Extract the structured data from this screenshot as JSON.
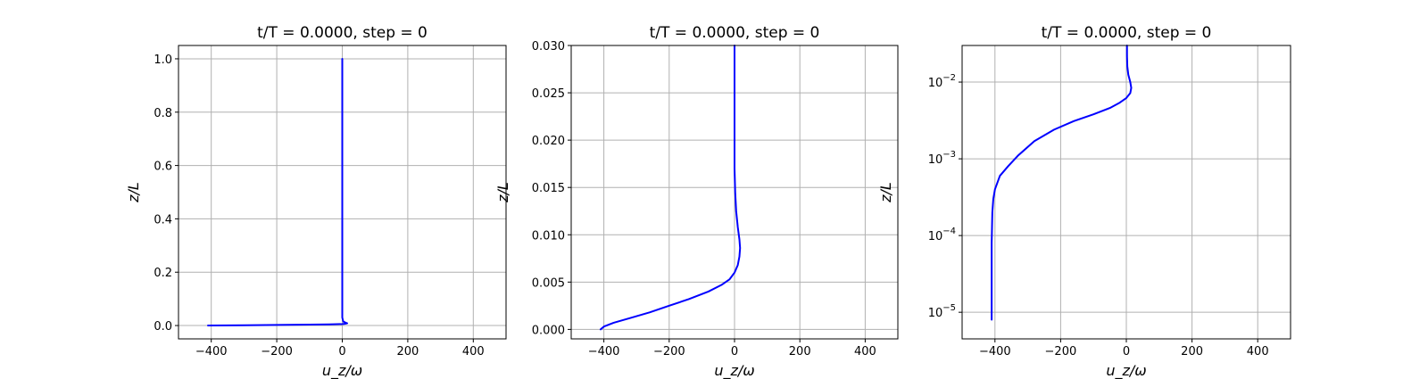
{
  "chart_data": [
    {
      "type": "line",
      "title": "t/T = 0.0000, step = 0",
      "xlabel": "u_z/ω",
      "ylabel": "z/L",
      "yscale": "linear",
      "xlim": [
        -500,
        500
      ],
      "ylim": [
        -0.05,
        1.05
      ],
      "xticks": [
        -400,
        -200,
        0,
        200,
        400
      ],
      "xtick_labels": [
        "−400",
        "−200",
        "0",
        "200",
        "400"
      ],
      "yticks": [
        0.0,
        0.2,
        0.4,
        0.6,
        0.8,
        1.0
      ],
      "ytick_labels": [
        "0.0",
        "0.2",
        "0.4",
        "0.6",
        "0.8",
        "1.0"
      ],
      "grid": true,
      "series": [
        {
          "name": "profile",
          "color": "#0000ff",
          "x": [
            -410,
            -300,
            -200,
            -100,
            -40,
            0,
            10,
            15,
            10,
            3,
            0,
            0,
            0
          ],
          "y": [
            0.0,
            0.001,
            0.0022,
            0.0035,
            0.0045,
            0.0055,
            0.007,
            0.0085,
            0.011,
            0.015,
            0.03,
            0.5,
            1.0
          ]
        }
      ]
    },
    {
      "type": "line",
      "title": "t/T = 0.0000, step = 0",
      "xlabel": "u_z/ω",
      "ylabel": "z/L",
      "yscale": "linear",
      "xlim": [
        -500,
        500
      ],
      "ylim": [
        -0.001,
        0.03
      ],
      "xticks": [
        -400,
        -200,
        0,
        200,
        400
      ],
      "xtick_labels": [
        "−400",
        "−200",
        "0",
        "200",
        "400"
      ],
      "yticks": [
        0.0,
        0.005,
        0.01,
        0.015,
        0.02,
        0.025,
        0.03
      ],
      "ytick_labels": [
        "0.000",
        "0.005",
        "0.010",
        "0.015",
        "0.020",
        "0.025",
        "0.030"
      ],
      "grid": true,
      "series": [
        {
          "name": "profile",
          "color": "#0000ff",
          "x": [
            -410,
            -400,
            -370,
            -320,
            -260,
            -200,
            -140,
            -80,
            -40,
            -15,
            0,
            10,
            15,
            17,
            15,
            10,
            5,
            2,
            0,
            0,
            0
          ],
          "y": [
            0.0,
            0.0003,
            0.0007,
            0.0012,
            0.0018,
            0.0025,
            0.0032,
            0.004,
            0.0047,
            0.0053,
            0.006,
            0.0068,
            0.0077,
            0.0086,
            0.0095,
            0.0108,
            0.0125,
            0.0145,
            0.017,
            0.022,
            0.03
          ]
        }
      ]
    },
    {
      "type": "line",
      "title": "t/T = 0.0000, step = 0",
      "xlabel": "u_z/ω",
      "ylabel": "z/L",
      "yscale": "log",
      "xlim": [
        -500,
        500
      ],
      "ylim": [
        4.5e-06,
        0.03
      ],
      "xticks": [
        -400,
        -200,
        0,
        200,
        400
      ],
      "xtick_labels": [
        "−400",
        "−200",
        "0",
        "200",
        "400"
      ],
      "yticks": [
        1e-05,
        0.0001,
        0.001,
        0.01
      ],
      "ytick_labels": [
        {
          "base": "10",
          "exp": "−5"
        },
        {
          "base": "10",
          "exp": "−4"
        },
        {
          "base": "10",
          "exp": "−3"
        },
        {
          "base": "10",
          "exp": "−2"
        }
      ],
      "grid": true,
      "series": [
        {
          "name": "profile",
          "color": "#0000ff",
          "x": [
            -410,
            -410,
            -410,
            -408,
            -405,
            -400,
            -385,
            -360,
            -330,
            -280,
            -220,
            -160,
            -100,
            -50,
            -20,
            0,
            12,
            15,
            12,
            6,
            3,
            2,
            2
          ],
          "y": [
            8e-06,
            2e-05,
            8e-05,
            0.0002,
            0.0003,
            0.0004,
            0.0006,
            0.0008,
            0.0011,
            0.0017,
            0.0024,
            0.0031,
            0.0038,
            0.0046,
            0.0054,
            0.0062,
            0.0072,
            0.0084,
            0.01,
            0.0125,
            0.016,
            0.022,
            0.03
          ]
        }
      ]
    }
  ]
}
